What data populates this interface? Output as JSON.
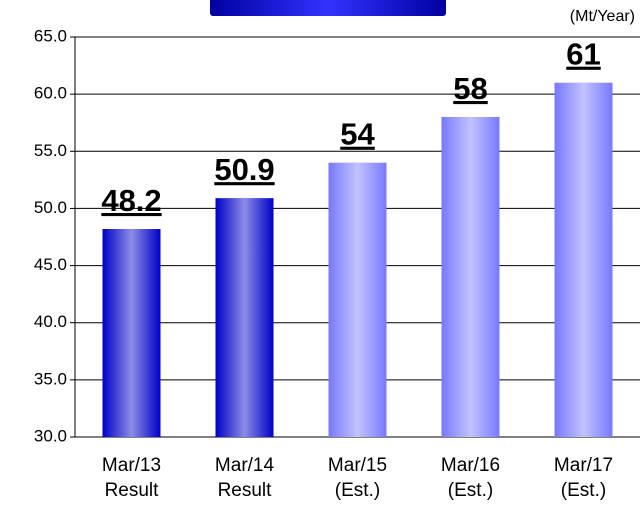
{
  "chart_data": {
    "type": "bar",
    "unit_label": "(Mt/Year)",
    "categories": [
      [
        "Mar/13",
        "Result"
      ],
      [
        "Mar/14",
        "Result"
      ],
      [
        "Mar/15",
        "(Est.)"
      ],
      [
        "Mar/16",
        "(Est.)"
      ],
      [
        "Mar/17",
        "(Est.)"
      ]
    ],
    "values": [
      48.2,
      50.9,
      54,
      58,
      61
    ],
    "colors": [
      "#0000c8",
      "#0000c8",
      "#7878ff",
      "#7878ff",
      "#7878ff"
    ],
    "ylim": [
      30,
      65
    ],
    "yticks": [
      {
        "value": 30,
        "label": "30.0"
      },
      {
        "value": 35,
        "label": "35.0"
      },
      {
        "value": 40,
        "label": "40.0"
      },
      {
        "value": 45,
        "label": "45.0"
      },
      {
        "value": 50,
        "label": "50.0"
      },
      {
        "value": 55,
        "label": "55.0"
      },
      {
        "value": 60,
        "label": "60.0"
      },
      {
        "value": 65,
        "label": "65.0"
      }
    ],
    "grid": true
  }
}
